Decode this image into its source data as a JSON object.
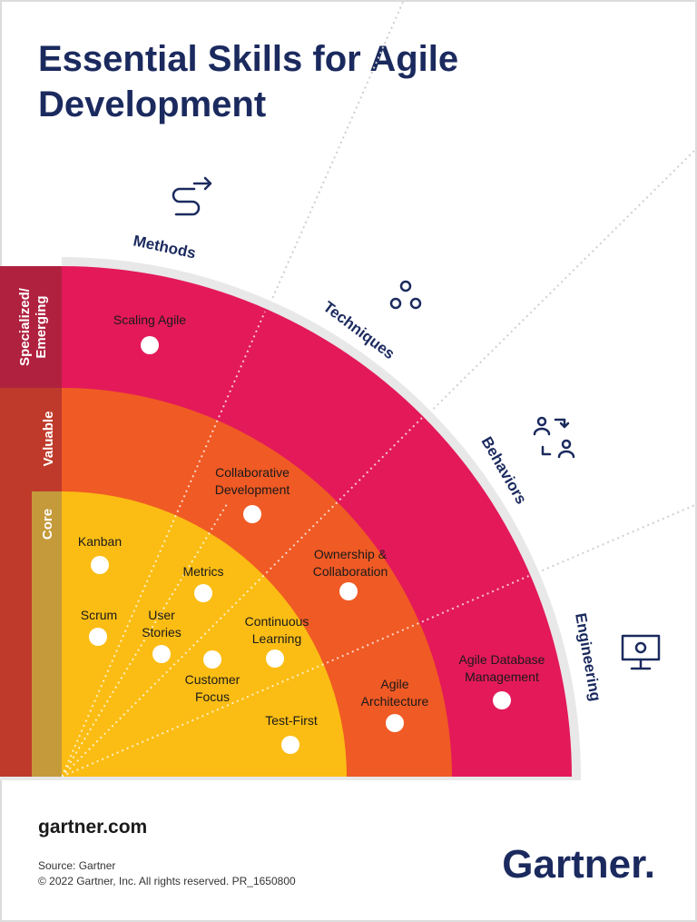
{
  "header": {
    "title": [
      "Essential Skills for Agile",
      "Development"
    ]
  },
  "rings": [
    [
      "Specialized/",
      "Emerging"
    ],
    [
      "Valuable"
    ],
    [
      "Core"
    ]
  ],
  "sectors": [
    "Methods",
    "Techniques",
    "Behaviors",
    "Engineering"
  ],
  "skills": [
    {
      "label": [
        "Scaling Agile"
      ]
    },
    {
      "label": [
        "Collaborative",
        "Development"
      ]
    },
    {
      "label": [
        "Kanban"
      ]
    },
    {
      "label": [
        "Metrics"
      ]
    },
    {
      "label": [
        "Ownership &",
        "Collaboration"
      ]
    },
    {
      "label": [
        "Scrum"
      ]
    },
    {
      "label": [
        "User",
        "Stories"
      ]
    },
    {
      "label": [
        "Continuous",
        "Learning"
      ]
    },
    {
      "label": [
        "Customer",
        "Focus"
      ]
    },
    {
      "label": [
        "Agile",
        "Architecture"
      ]
    },
    {
      "label": [
        "Agile Database",
        "Management"
      ]
    },
    {
      "label": [
        "Test-First"
      ]
    }
  ],
  "footer": {
    "website": "gartner.com",
    "source": "Source: Gartner",
    "copyright": "© 2022 Gartner, Inc. All rights reserved. PR_1650800",
    "logo": "Gartner."
  }
}
